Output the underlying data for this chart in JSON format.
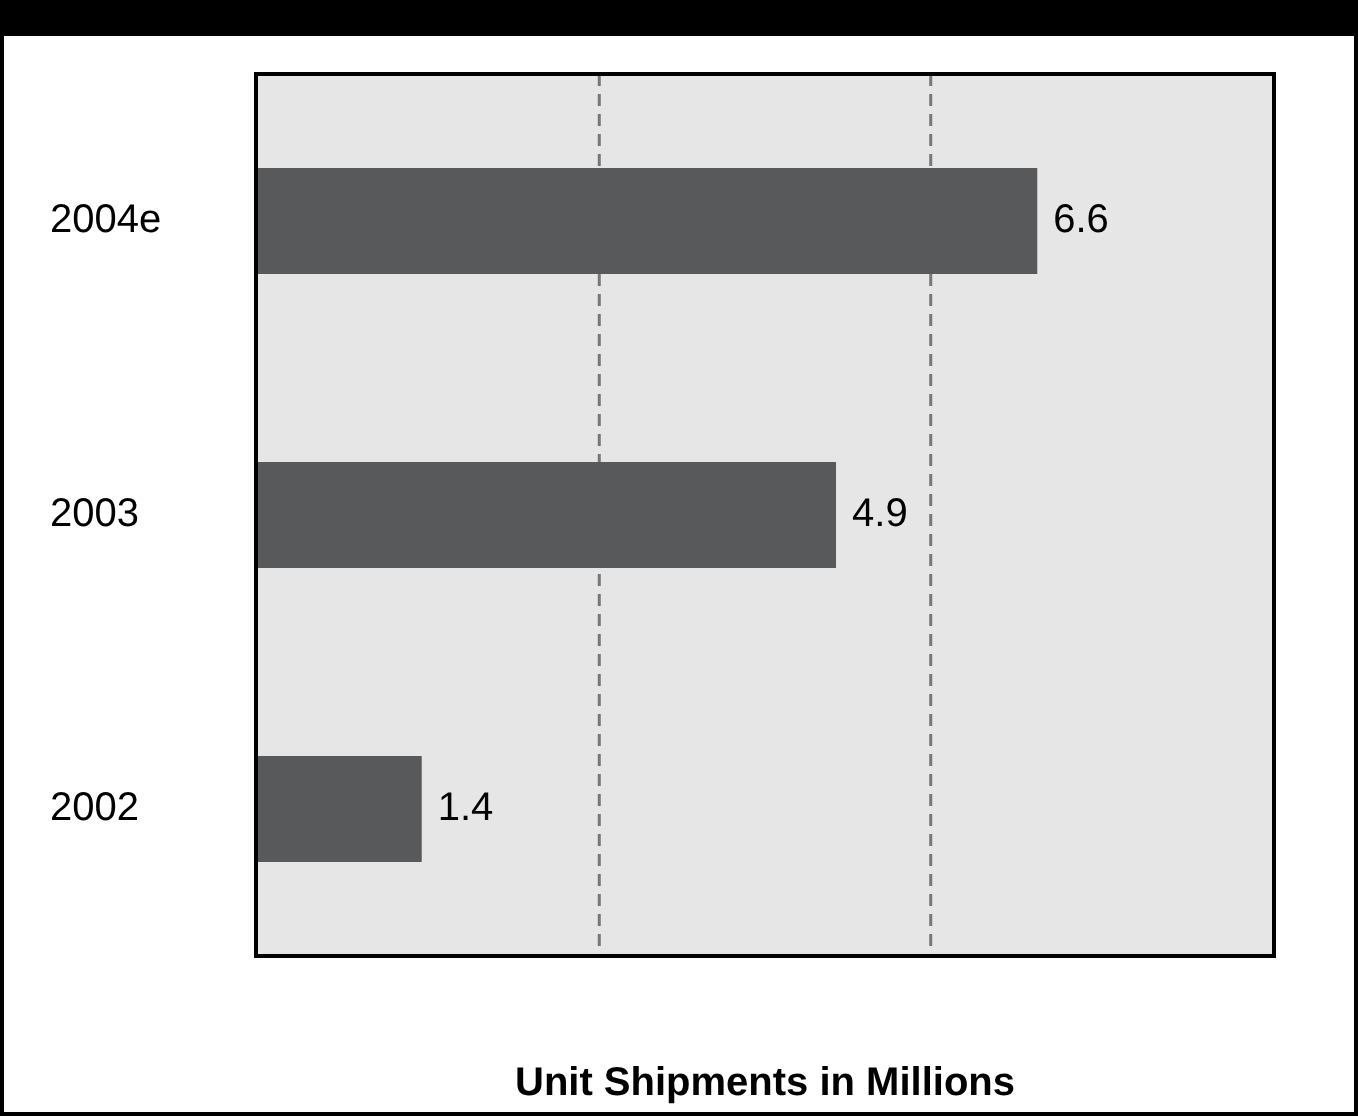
{
  "chart_data": {
    "type": "bar",
    "orientation": "horizontal",
    "xlabel": "Unit Shipments in Millions",
    "categories": [
      "2004e",
      "2003",
      "2002"
    ],
    "values": [
      6.6,
      4.9,
      1.4
    ],
    "color": "#58595b",
    "data_labels": true,
    "xlim": [
      0,
      8.6
    ],
    "ref_lines": [
      {
        "axis": "x",
        "value": 2.9,
        "color": "#777777",
        "line_style": "dashed"
      },
      {
        "axis": "x",
        "value": 5.7,
        "color": "#777777",
        "line_style": "dashed"
      }
    ],
    "tick_labels": "y"
  }
}
